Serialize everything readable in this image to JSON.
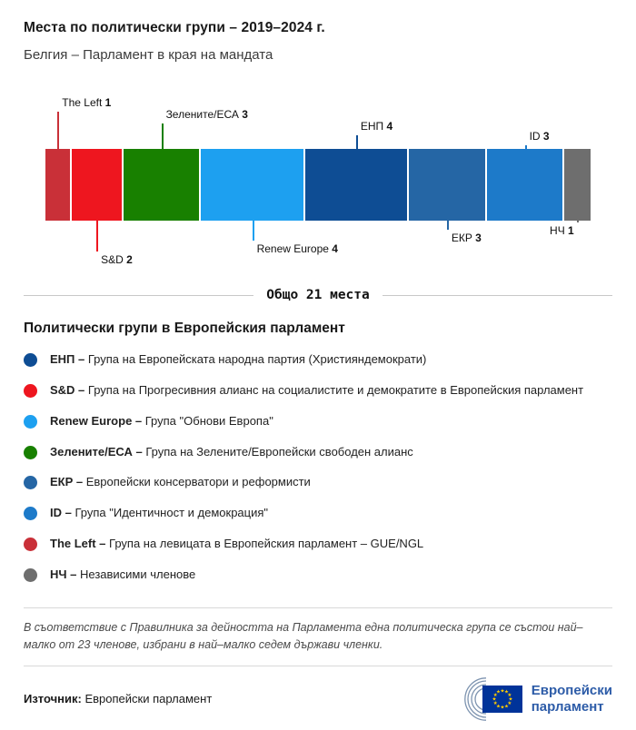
{
  "header": {
    "title": "Места по политически групи – 2019–2024 г.",
    "subtitle": "Белгия – Парламент в края на мандата"
  },
  "chart_data": {
    "type": "bar",
    "orientation": "horizontal-stacked",
    "title": "Места по политически групи – 2019–2024 г.",
    "subtitle": "Белгия – Парламент в края на мандата",
    "total_seats": 21,
    "total_label": "Общо 21 места",
    "series": [
      {
        "name": "The Left",
        "seats": 1,
        "color": "#c93038",
        "callout_side": "top",
        "callout_tier": 4
      },
      {
        "name": "S&D",
        "seats": 2,
        "color": "#ee161f",
        "callout_side": "bottom",
        "callout_tier": 4
      },
      {
        "name": "Зелените/ЕСА",
        "seats": 3,
        "color": "#188000",
        "callout_side": "top",
        "callout_tier": 3
      },
      {
        "name": "Renew Europe",
        "seats": 4,
        "color": "#1da0f0",
        "callout_side": "bottom",
        "callout_tier": 3
      },
      {
        "name": "ЕНП",
        "seats": 4,
        "color": "#0e4d94",
        "callout_side": "top",
        "callout_tier": 2
      },
      {
        "name": "ЕКР",
        "seats": 3,
        "color": "#2566a5",
        "callout_side": "bottom",
        "callout_tier": 2
      },
      {
        "name": "ID",
        "seats": 3,
        "color": "#1d7ac9",
        "callout_side": "top",
        "callout_tier": 1
      },
      {
        "name": "НЧ",
        "seats": 1,
        "color": "#6e6e6e",
        "callout_side": "bottom",
        "callout_tier": 1,
        "callout_align": "right"
      }
    ]
  },
  "legend": {
    "title": "Политически групи в Европейския парламент",
    "items": [
      {
        "label": "ЕНП –",
        "desc": "Група на Европейската народна партия (Християндемократи)",
        "color": "#0e4d94"
      },
      {
        "label": "S&D –",
        "desc": "Група на Прогресивния алианс на социалистите и демократите в Европейския парламент",
        "color": "#ee161f"
      },
      {
        "label": "Renew Europe –",
        "desc": "Група \"Обнови Европа\"",
        "color": "#1da0f0"
      },
      {
        "label": "Зелените/ЕСА –",
        "desc": "Група на Зелените/Европейски свободен алианс",
        "color": "#188000"
      },
      {
        "label": "ЕКР –",
        "desc": "Европейски консерватори и реформисти",
        "color": "#2566a5"
      },
      {
        "label": "ID –",
        "desc": "Група \"Идентичност и демокрация\"",
        "color": "#1d7ac9"
      },
      {
        "label": "The Left –",
        "desc": "Група на левицата в Европейския парламент – GUE/NGL",
        "color": "#c93038"
      },
      {
        "label": "НЧ –",
        "desc": "Независими членове",
        "color": "#6e6e6e"
      }
    ]
  },
  "footer": {
    "note": "В съответствие с Правилника за дейността на Парламента една политическа група се състои най–малко от 23 членове, избрани в най–малко седем държави членки.",
    "source_label": "Източник:",
    "source_value": "Европейски парламент",
    "logo_text_line1": "Европейски",
    "logo_text_line2": "парламент"
  }
}
